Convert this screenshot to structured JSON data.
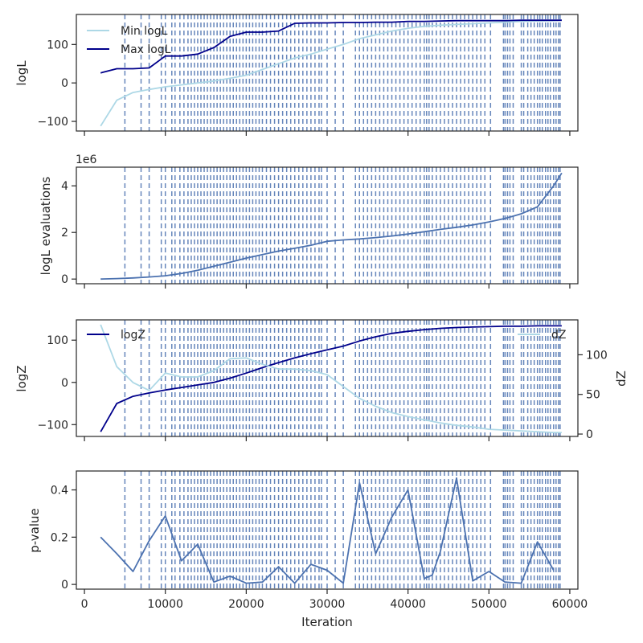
{
  "chart_data": [
    {
      "type": "line",
      "ylabel": "logL",
      "xlim": [
        -1000,
        61000
      ],
      "ylim": [
        -125,
        178
      ],
      "yticks": [
        -100,
        0,
        100
      ],
      "xticks": [
        0,
        10000,
        20000,
        30000,
        40000,
        50000,
        60000
      ],
      "legend_position": "top-left",
      "series": [
        {
          "name": "Min logL",
          "color": "#add8e6",
          "x": [
            2000,
            4000,
            6000,
            8000,
            10000,
            12000,
            14000,
            16000,
            18000,
            20000,
            22000,
            24000,
            26000,
            28000,
            30000,
            32000,
            34000,
            36000,
            38000,
            40000,
            42000,
            44000,
            46000,
            48000,
            50000,
            52000,
            54000,
            56000,
            58000,
            59000
          ],
          "y": [
            -112,
            -45,
            -25,
            -17,
            -10,
            -5,
            0,
            5,
            12,
            20,
            35,
            50,
            65,
            75,
            88,
            100,
            115,
            125,
            135,
            142,
            147,
            150,
            152,
            154,
            156,
            158,
            160,
            161,
            162,
            163
          ]
        },
        {
          "name": "Max logL",
          "color": "#00008b",
          "x": [
            2000,
            4000,
            6000,
            8000,
            10000,
            12000,
            14000,
            16000,
            18000,
            20000,
            22000,
            24000,
            26000,
            28000,
            30000,
            32000,
            34000,
            36000,
            38000,
            40000,
            42000,
            44000,
            46000,
            48000,
            50000,
            52000,
            54000,
            56000,
            58000,
            59000
          ],
          "y": [
            26,
            37,
            37,
            39,
            70,
            70,
            75,
            92,
            121,
            132,
            132,
            135,
            155,
            156,
            156,
            157,
            157,
            158,
            158,
            160,
            160,
            161,
            162,
            162,
            162,
            162,
            163,
            163,
            163,
            163
          ]
        }
      ]
    },
    {
      "type": "line",
      "ylabel": "logL evaluations",
      "offset_label": "1e6",
      "xlim": [
        -1000,
        61000
      ],
      "ylim": [
        -0.2,
        4.8
      ],
      "yticks": [
        0,
        2,
        4
      ],
      "xticks": [
        0,
        10000,
        20000,
        30000,
        40000,
        50000,
        60000
      ],
      "series": [
        {
          "color": "#4c72b0",
          "x": [
            2000,
            4000,
            6000,
            8000,
            10000,
            12000,
            14000,
            16000,
            18000,
            20000,
            22000,
            24000,
            26000,
            28000,
            30000,
            32000,
            34000,
            36000,
            38000,
            40000,
            42000,
            44000,
            46000,
            48000,
            50000,
            52000,
            54000,
            56000,
            58000,
            59000
          ],
          "y": [
            0.0,
            0.02,
            0.05,
            0.09,
            0.14,
            0.24,
            0.38,
            0.55,
            0.72,
            0.9,
            1.05,
            1.2,
            1.32,
            1.45,
            1.62,
            1.68,
            1.72,
            1.78,
            1.85,
            1.93,
            2.03,
            2.13,
            2.22,
            2.32,
            2.45,
            2.6,
            2.8,
            3.1,
            4.0,
            4.55
          ]
        }
      ]
    },
    {
      "type": "line",
      "ylabel": "logZ",
      "ylabel_right": "dZ",
      "xlim": [
        -1000,
        61000
      ],
      "ylim": [
        -128,
        148
      ],
      "yticks": [
        -100,
        0,
        100
      ],
      "y2lim": [
        -3,
        144
      ],
      "y2ticks": [
        0,
        50,
        100
      ],
      "xticks": [
        0,
        10000,
        20000,
        30000,
        40000,
        50000,
        60000
      ],
      "series": [
        {
          "name": "logZ",
          "color": "#00008b",
          "axis": "left",
          "x": [
            2000,
            4000,
            6000,
            8000,
            10000,
            12000,
            14000,
            16000,
            18000,
            20000,
            22000,
            24000,
            26000,
            28000,
            30000,
            32000,
            34000,
            36000,
            38000,
            40000,
            42000,
            44000,
            46000,
            48000,
            50000,
            52000,
            54000,
            56000,
            58000,
            59000
          ],
          "y": [
            -117,
            -50,
            -33,
            -25,
            -18,
            -12,
            -6,
            0,
            10,
            22,
            35,
            47,
            58,
            68,
            77,
            86,
            98,
            108,
            116,
            121,
            125,
            128,
            130,
            131,
            132,
            133,
            133,
            134,
            134,
            134
          ]
        },
        {
          "name": "dZ",
          "color": "#add8e6",
          "axis": "right",
          "x": [
            2000,
            4000,
            6000,
            8000,
            10000,
            12000,
            14000,
            16000,
            18000,
            20000,
            22000,
            24000,
            26000,
            28000,
            30000,
            32000,
            34000,
            36000,
            38000,
            40000,
            42000,
            44000,
            46000,
            48000,
            50000,
            52000,
            54000,
            56000,
            58000,
            59000
          ],
          "y": [
            138,
            85,
            65,
            55,
            77,
            72,
            72,
            80,
            95,
            96,
            88,
            82,
            82,
            80,
            75,
            60,
            45,
            35,
            27,
            22,
            18,
            14,
            11,
            9,
            6,
            5,
            4,
            3,
            2,
            2
          ]
        }
      ]
    },
    {
      "type": "line",
      "ylabel": "p-value",
      "xlabel": "Iteration",
      "xlim": [
        -1000,
        61000
      ],
      "ylim": [
        -0.02,
        0.48
      ],
      "yticks": [
        0.0,
        0.2,
        0.4
      ],
      "xticks": [
        0,
        10000,
        20000,
        30000,
        40000,
        50000,
        60000
      ],
      "series": [
        {
          "color": "#4c72b0",
          "x": [
            2000,
            4000,
            6000,
            8000,
            10000,
            12000,
            14000,
            16000,
            18000,
            20000,
            22000,
            24000,
            26000,
            28000,
            30000,
            32000,
            34000,
            36000,
            38000,
            40000,
            42000,
            43000,
            44000,
            46000,
            48000,
            50000,
            52000,
            54000,
            56000,
            58000
          ],
          "y": [
            0.2,
            0.13,
            0.055,
            0.185,
            0.29,
            0.1,
            0.17,
            0.01,
            0.035,
            0.005,
            0.01,
            0.075,
            0.005,
            0.085,
            0.06,
            0.005,
            0.43,
            0.13,
            0.285,
            0.4,
            0.025,
            0.04,
            0.14,
            0.45,
            0.015,
            0.055,
            0.01,
            0.005,
            0.18,
            0.06
          ]
        }
      ]
    }
  ],
  "vlines": {
    "color": "#4c72b0",
    "x": [
      5000,
      7000,
      8000,
      9500,
      10000,
      10800,
      11200,
      11800,
      12300,
      12800,
      13200,
      13600,
      14000,
      14400,
      14800,
      15200,
      15600,
      16000,
      16400,
      16800,
      17200,
      17600,
      18000,
      18400,
      18800,
      19200,
      19600,
      20000,
      20400,
      20800,
      21200,
      21600,
      22000,
      22500,
      23000,
      23500,
      24000,
      24500,
      25000,
      25500,
      26000,
      26500,
      27000,
      27500,
      28000,
      28500,
      29000,
      29300,
      30000,
      31000,
      32000,
      33500,
      34000,
      34500,
      35000,
      35500,
      36000,
      36500,
      37000,
      37500,
      38000,
      38500,
      39000,
      39500,
      40000,
      40500,
      41000,
      41500,
      42000,
      42300,
      42600,
      43000,
      43500,
      44000,
      44500,
      45000,
      45500,
      46000,
      46500,
      47000,
      47500,
      48000,
      48500,
      49000,
      49500,
      50200,
      51800,
      52000,
      52300,
      52600,
      53000,
      54000,
      54300,
      54800,
      55200,
      55600,
      56000,
      56300,
      56600,
      57000,
      57300,
      57600,
      58000,
      58300,
      58600,
      58800
    ]
  }
}
